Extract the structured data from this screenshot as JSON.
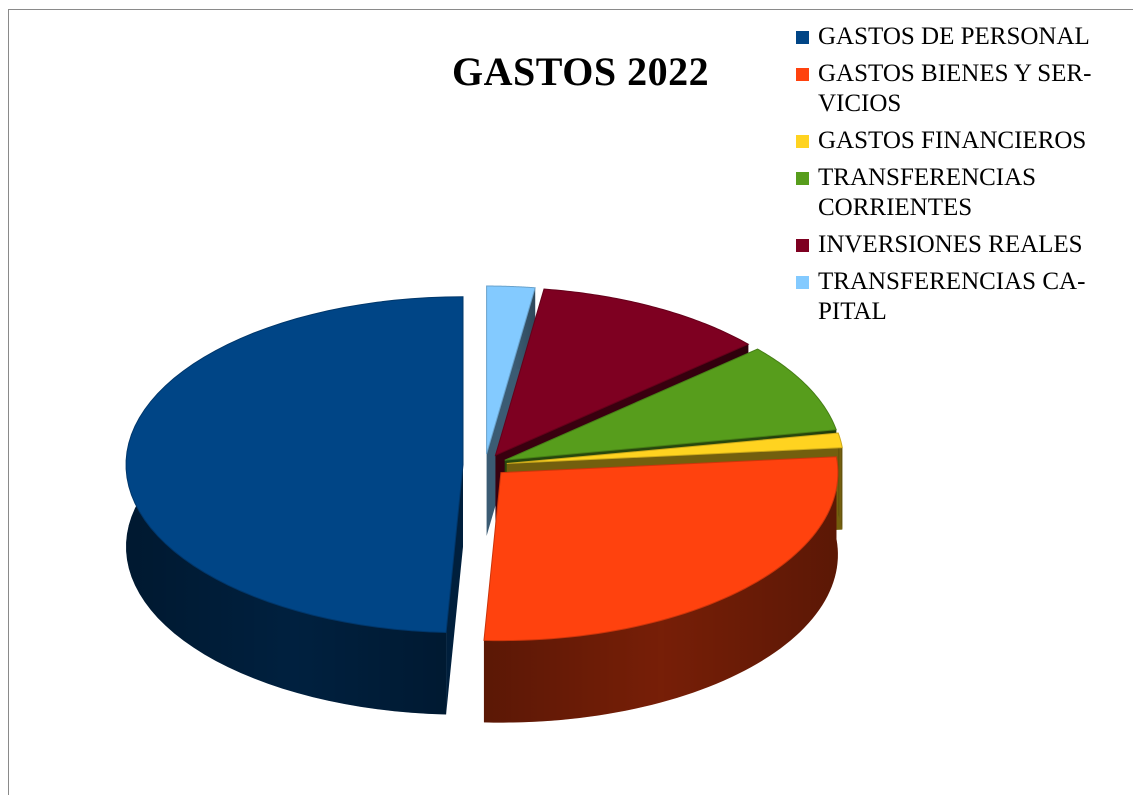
{
  "chart_data": {
    "type": "pie",
    "title": "GASTOS 2022",
    "legend_position": "right",
    "exploded": true,
    "three_d": true,
    "series": [
      {
        "label": "GASTOS DE PERSONAL",
        "display_label": "GASTOS DE PERSONAL",
        "value": 49.2,
        "color": "#004586"
      },
      {
        "label": "GASTOS BIENES Y SERVICIOS",
        "display_label": "GASTOS BIENES Y SER-\nVICIOS",
        "value": 27.3,
        "color": "#FF420E"
      },
      {
        "label": "GASTOS FINANCIEROS",
        "display_label": "GASTOS FINANCIEROS",
        "value": 1.4,
        "color": "#FFD320"
      },
      {
        "label": "TRANSFERENCIAS CORRIENTES",
        "display_label": "TRANSFERENCIAS\nCORRIENTES",
        "value": 8.6,
        "color": "#579D1C"
      },
      {
        "label": "INVERSIONES REALES",
        "display_label": "INVERSIONES REALES",
        "value": 11.2,
        "color": "#7E0021"
      },
      {
        "label": "TRANSFERENCIAS CAPITAL",
        "display_label": "TRANSFERENCIAS CA-\nPITAL",
        "value": 2.3,
        "color": "#83CAFF"
      }
    ]
  }
}
